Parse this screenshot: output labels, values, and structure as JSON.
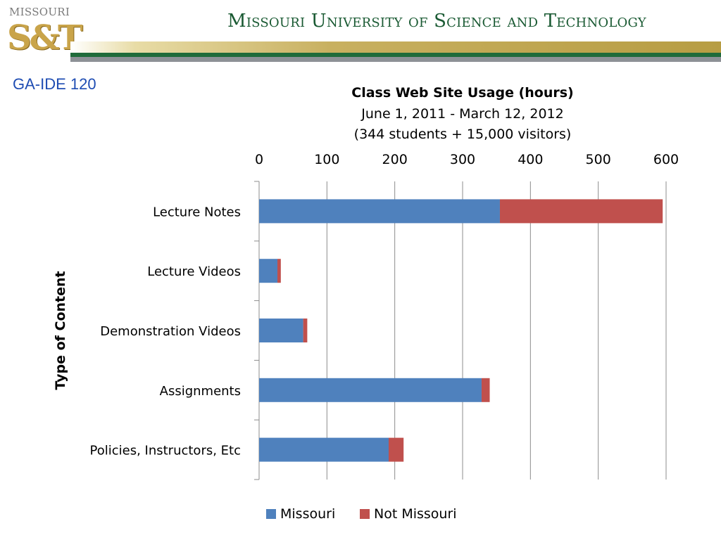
{
  "header": {
    "logo_top_text": "MISSOURI",
    "logo_mark": "S&T",
    "title": "Missouri University of Science and Technology"
  },
  "course_label": "GA-IDE 120",
  "colors": {
    "missouri": "#4f81bd",
    "not_missouri": "#c0504d",
    "header_green": "#1a5a33",
    "course_label": "#1f4db3"
  },
  "chart_data": {
    "type": "bar",
    "orientation": "horizontal",
    "stacked": true,
    "title": "Class Web Site Usage (hours)",
    "subtitle_lines": [
      "June 1, 2011 - March 12, 2012",
      "(344 students + 15,000 visitors)"
    ],
    "ylabel": "Type of Content",
    "xlabel": "",
    "xlim": [
      0,
      600
    ],
    "x_ticks": [
      0,
      100,
      200,
      300,
      400,
      500,
      600
    ],
    "x_axis_position": "top",
    "grid": true,
    "legend_position": "bottom",
    "categories": [
      "Lecture Notes",
      "Lecture Videos",
      "Demonstration Videos",
      "Assignments",
      "Policies, Instructors, Etc"
    ],
    "series": [
      {
        "name": "Missouri",
        "values": [
          355,
          27,
          65,
          328,
          191
        ]
      },
      {
        "name": "Not Missouri",
        "values": [
          240,
          5,
          6,
          12,
          22
        ]
      }
    ]
  }
}
